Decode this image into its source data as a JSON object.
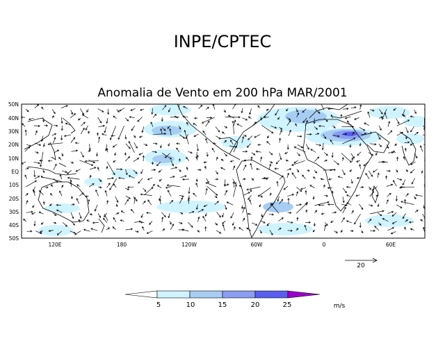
{
  "header": {
    "title": "INPE/CPTEC"
  },
  "map": {
    "title": "Anomalia de Vento em 200 hPa MAR/2001",
    "lat_labels": [
      "50N",
      "40N",
      "30N",
      "20N",
      "10N",
      "EQ",
      "10S",
      "20S",
      "30S",
      "40S",
      "50S"
    ],
    "lon_labels": [
      "120E",
      "180",
      "120W",
      "60W",
      "0",
      "60E"
    ],
    "lon_range_deg": [
      90,
      450
    ],
    "lat_range_deg": [
      -50,
      50
    ],
    "reference_vector": {
      "label": "20",
      "magnitude_ms": 20
    }
  },
  "colorbar": {
    "ticks": [
      "5",
      "10",
      "15",
      "20",
      "25"
    ],
    "unit": "m/s",
    "colors": [
      "#ffffff",
      "#d0f4ff",
      "#a7cdf2",
      "#8b9df2",
      "#5a5ef0",
      "#9b00cc"
    ]
  },
  "shading_colors": {
    "level1": "#d0f4ff",
    "level2": "#a7cdf2",
    "level3": "#8b9df2",
    "level4": "#5a5ef0",
    "level5": "#9b00cc"
  }
}
